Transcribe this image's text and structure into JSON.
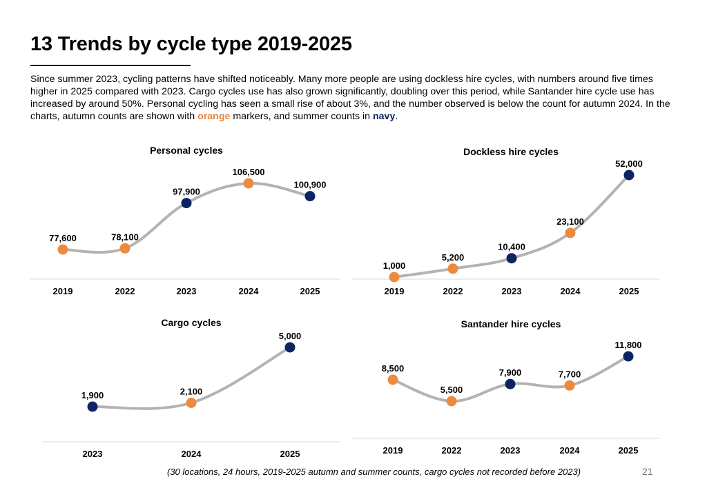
{
  "page": {
    "title": "13 Trends by cycle type 2019-2025",
    "intro": {
      "part1": "Since summer 2023, cycling patterns have shifted noticeably. Many more people are using dockless hire cycles, with numbers around five times higher in 2025 compared with 2023. Cargo cycles use has also grown significantly, doubling over this period, while Santander hire cycle use has increased by around 50%. Personal cycling has seen a small rise of about 3%, and the number observed is below the count for autumn 2024. In the charts, autumn counts are shown with ",
      "orange_word": "orange",
      "part2": " markers, and summer counts in ",
      "navy_word": "navy",
      "part3": "."
    },
    "footnote": "(30 locations, 24 hours, 2019-2025 autumn and summer counts, cargo cycles not recorded before 2023)",
    "page_number": "21"
  },
  "colors": {
    "autumn": "#ed8a3e",
    "summer": "#0c2461",
    "line": "#b3b3b3",
    "baseline": "#d9d9d9"
  },
  "chart_data": [
    {
      "type": "line",
      "title": "Personal cycles",
      "categories": [
        "2019",
        "2022",
        "2023",
        "2024",
        "2025"
      ],
      "values": [
        77600,
        78100,
        97900,
        106500,
        100900
      ],
      "labels": [
        "77,600",
        "78,100",
        "97,900",
        "106,500",
        "100,900"
      ],
      "marker_season": [
        "autumn",
        "autumn",
        "summer",
        "autumn",
        "summer"
      ]
    },
    {
      "type": "line",
      "title": "Dockless hire cycles",
      "categories": [
        "2019",
        "2022",
        "2023",
        "2024",
        "2025"
      ],
      "values": [
        1000,
        5200,
        10400,
        23100,
        52000
      ],
      "labels": [
        "1,000",
        "5,200",
        "10,400",
        "23,100",
        "52,000"
      ],
      "marker_season": [
        "autumn",
        "autumn",
        "summer",
        "autumn",
        "summer"
      ]
    },
    {
      "type": "line",
      "title": "Cargo cycles",
      "categories": [
        "2023",
        "2024",
        "2025"
      ],
      "values": [
        1900,
        2100,
        5000
      ],
      "labels": [
        "1,900",
        "2,100",
        "5,000"
      ],
      "marker_season": [
        "summer",
        "autumn",
        "summer"
      ]
    },
    {
      "type": "line",
      "title": "Santander hire cycles",
      "categories": [
        "2019",
        "2022",
        "2023",
        "2024",
        "2025"
      ],
      "values": [
        8500,
        5500,
        7900,
        7700,
        11800
      ],
      "labels": [
        "8,500",
        "5,500",
        "7,900",
        "7,700",
        "11,800"
      ],
      "marker_season": [
        "autumn",
        "autumn",
        "summer",
        "autumn",
        "summer"
      ]
    }
  ]
}
